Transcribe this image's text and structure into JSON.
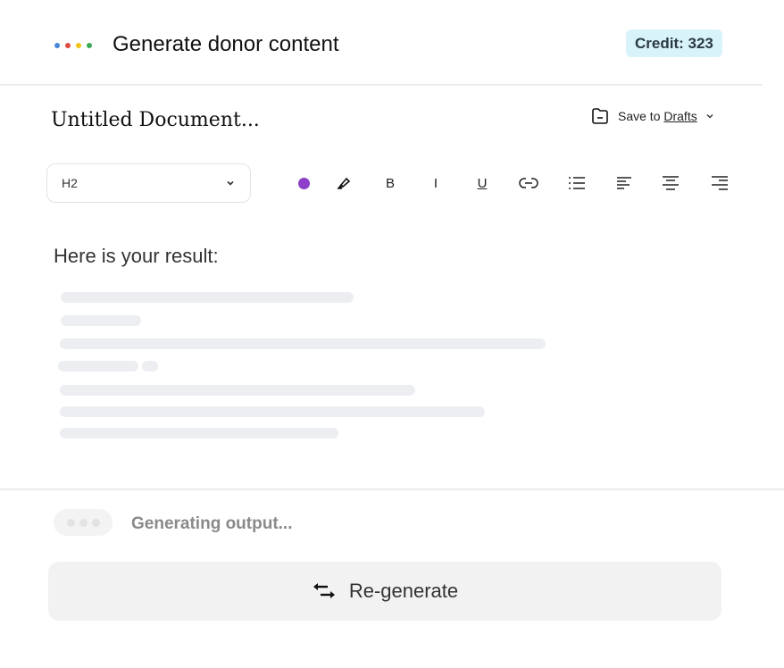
{
  "header": {
    "title": "Generate donor content",
    "credit": "Credit: 323",
    "dot_colors": [
      "#4a86d8",
      "#e04a3f",
      "#f2c318",
      "#3aaa55"
    ]
  },
  "document": {
    "title": "Untitled Document...",
    "save_prefix": "Save to",
    "save_target": "Drafts"
  },
  "toolbar": {
    "style_value": "H2",
    "text_color": "#8e3fc9",
    "bold": "B",
    "italic": "I",
    "underline": "U",
    "icons": [
      "color-dot",
      "highlighter",
      "bold",
      "italic",
      "underline",
      "link",
      "bullet-list",
      "align-left",
      "align-center",
      "align-right"
    ]
  },
  "result": {
    "heading": "Here is your result:"
  },
  "footer": {
    "status": "Generating output...",
    "regenerate_label": "Re-generate"
  }
}
